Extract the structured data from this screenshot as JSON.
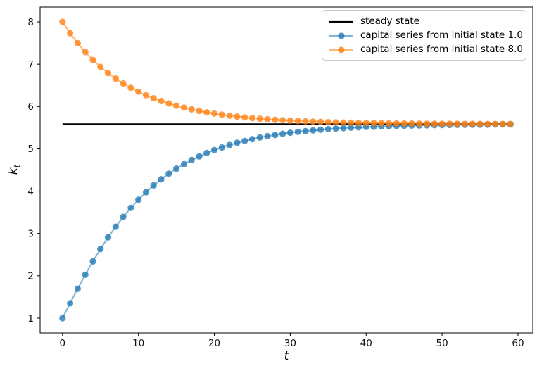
{
  "figure": {
    "xlabel": "t",
    "ylabel_base": "k",
    "ylabel_sub": "t",
    "background_color": "#ffffff",
    "spine_color": "#000000"
  },
  "chart_data": {
    "type": "line",
    "title": "",
    "xlabel": "t",
    "ylabel": "k_t",
    "grid": false,
    "legend_position": "upper right",
    "xlim": [
      -2.95,
      61.95
    ],
    "ylim": [
      0.65,
      8.35
    ],
    "x_ticks": [
      0,
      10,
      20,
      30,
      40,
      50,
      60
    ],
    "y_ticks": [
      1,
      2,
      3,
      4,
      5,
      6,
      7,
      8
    ],
    "x": [
      0,
      1,
      2,
      3,
      4,
      5,
      6,
      7,
      8,
      9,
      10,
      11,
      12,
      13,
      14,
      15,
      16,
      17,
      18,
      19,
      20,
      21,
      22,
      23,
      24,
      25,
      26,
      27,
      28,
      29,
      30,
      31,
      32,
      33,
      34,
      35,
      36,
      37,
      38,
      39,
      40,
      41,
      42,
      43,
      44,
      45,
      46,
      47,
      48,
      49,
      50,
      51,
      52,
      53,
      54,
      55,
      56,
      57,
      58,
      59
    ],
    "series": [
      {
        "label": "steady state",
        "type": "hline",
        "color": "#000000",
        "value": 5.584,
        "x_start": 0,
        "x_end": 59,
        "marker": "none"
      },
      {
        "label": "capital series from initial state 1.0",
        "type": "line_markers",
        "color": "#1f77b4",
        "marker": "circle",
        "initial_state": 1.0,
        "values": [
          1.0,
          1.35,
          1.695,
          2.026,
          2.34,
          2.634,
          2.908,
          3.16,
          3.393,
          3.605,
          3.799,
          3.975,
          4.135,
          4.281,
          4.412,
          4.531,
          4.638,
          4.734,
          4.821,
          4.9,
          4.97,
          5.033,
          5.09,
          5.142,
          5.187,
          5.229,
          5.266,
          5.299,
          5.329,
          5.355,
          5.379,
          5.401,
          5.42,
          5.437,
          5.452,
          5.466,
          5.479,
          5.49,
          5.499,
          5.508,
          5.516,
          5.523,
          5.53,
          5.536,
          5.541,
          5.545,
          5.549,
          5.553,
          5.556,
          5.559,
          5.562,
          5.564,
          5.566,
          5.568,
          5.57,
          5.571,
          5.573,
          5.574,
          5.575,
          5.576
        ]
      },
      {
        "label": "capital series from initial state 8.0",
        "type": "line_markers",
        "color": "#ff7f0e",
        "marker": "circle",
        "initial_state": 8.0,
        "values": [
          8.0,
          7.733,
          7.497,
          7.287,
          7.101,
          6.936,
          6.79,
          6.66,
          6.544,
          6.441,
          6.349,
          6.267,
          6.194,
          6.129,
          6.071,
          6.019,
          5.973,
          5.932,
          5.895,
          5.862,
          5.833,
          5.807,
          5.783,
          5.762,
          5.743,
          5.727,
          5.712,
          5.698,
          5.686,
          5.675,
          5.666,
          5.657,
          5.65,
          5.643,
          5.637,
          5.631,
          5.626,
          5.622,
          5.618,
          5.614,
          5.611,
          5.608,
          5.606,
          5.603,
          5.601,
          5.599,
          5.598,
          5.596,
          5.595,
          5.594,
          5.593,
          5.592,
          5.591,
          5.59,
          5.589,
          5.589,
          5.588,
          5.588,
          5.587,
          5.587
        ]
      }
    ]
  }
}
